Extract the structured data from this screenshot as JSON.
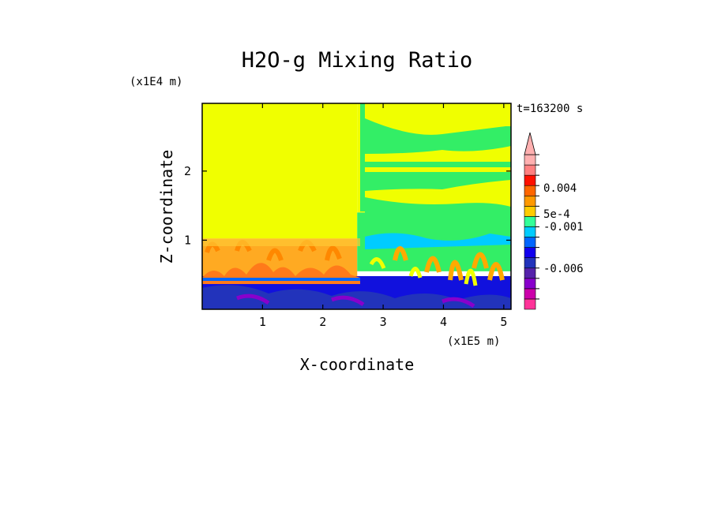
{
  "chart_data": {
    "type": "heatmap",
    "title": "H2O-g Mixing Ratio",
    "xlabel": "X-coordinate",
    "ylabel": "Z-coordinate",
    "x_unit": "(x1E5 m)",
    "y_unit": "(x1E4 m)",
    "time_label": "t=163200 s",
    "xlim": [
      0,
      5.12
    ],
    "ylim": [
      0,
      2.98
    ],
    "x_ticks": [
      "1",
      "2",
      "3",
      "4",
      "5"
    ],
    "x_tick_values": [
      1,
      2,
      3,
      4,
      5
    ],
    "y_ticks": [
      "1",
      "2"
    ],
    "y_tick_values": [
      1,
      2
    ],
    "colorbar": {
      "labels": [
        "0.004",
        "5e-4",
        "-0.001",
        "-0.006"
      ],
      "colors": [
        "#ff3399",
        "#cc00aa",
        "#8800cc",
        "#5522aa",
        "#2233bb",
        "#1100ee",
        "#0066ff",
        "#00ccff",
        "#33ff99",
        "#ffcc00",
        "#ff9900",
        "#ff6600",
        "#ff1100",
        "#ff8080",
        "#ffb0b0"
      ],
      "extend": "max"
    },
    "regions": [
      {
        "x": [
          0,
          2.57
        ],
        "z": [
          1.02,
          2.98
        ],
        "color": "#f0ff00"
      },
      {
        "x": [
          2.57,
          5.12
        ],
        "z": [
          1.4,
          2.98
        ],
        "color": "#f0ff00"
      },
      {
        "x": [
          0,
          2.57
        ],
        "z": [
          0.48,
          1.02
        ],
        "color": "#ffaa22"
      },
      {
        "x": [
          2.57,
          5.12
        ],
        "z": [
          0.55,
          1.4
        ],
        "color": "#33ee66"
      },
      {
        "x": [
          0,
          5.12
        ],
        "z": [
          0,
          0.48
        ],
        "color": "#1111dd"
      }
    ]
  }
}
